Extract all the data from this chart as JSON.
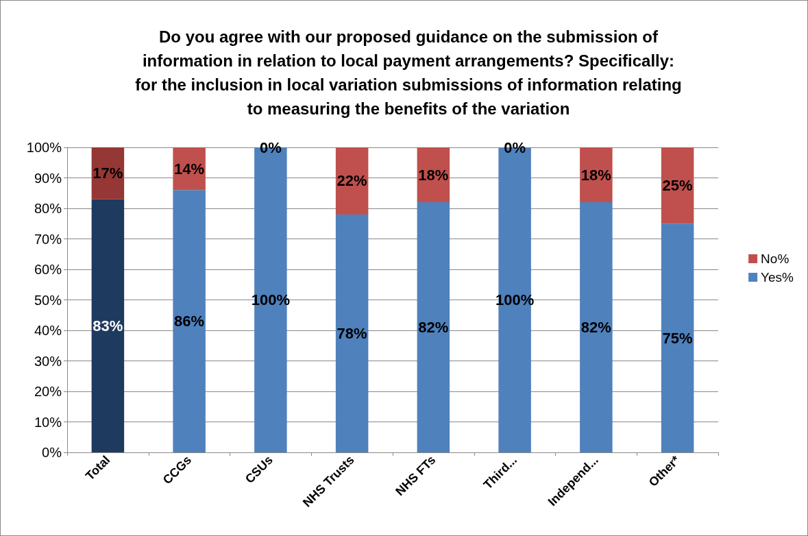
{
  "chart_data": {
    "type": "bar",
    "stacked": true,
    "title": "Do you agree with our proposed guidance on the submission of\ninformation in relation to local payment arrangements? Specifically:\nfor the inclusion in local variation submissions of information relating\nto measuring the benefits of the variation",
    "categories": [
      "Total",
      "CCGs",
      "CSUs",
      "NHS Trusts",
      "NHS FTs",
      "Third...",
      "Independ...",
      "Other*"
    ],
    "series": [
      {
        "name": "Yes%",
        "color": "#4f81bd",
        "colors": [
          "#1f3a5f",
          "#4f81bd",
          "#4f81bd",
          "#4f81bd",
          "#4f81bd",
          "#4f81bd",
          "#4f81bd",
          "#4f81bd"
        ],
        "values": [
          83,
          86,
          100,
          78,
          82,
          100,
          82,
          75
        ],
        "value_labels": [
          "83%",
          "86%",
          "100%",
          "78%",
          "82%",
          "100%",
          "82%",
          "75%"
        ]
      },
      {
        "name": "No%",
        "color": "#c0504d",
        "colors": [
          "#953735",
          "#c0504d",
          "#c0504d",
          "#c0504d",
          "#c0504d",
          "#c0504d",
          "#c0504d",
          "#c0504d"
        ],
        "values": [
          17,
          14,
          0,
          22,
          18,
          0,
          18,
          25
        ],
        "value_labels": [
          "17%",
          "14%",
          "0%",
          "22%",
          "18%",
          "0%",
          "18%",
          "25%"
        ]
      }
    ],
    "ylim": [
      0,
      100
    ],
    "yticks": [
      {
        "value": 0,
        "label": "0%"
      },
      {
        "value": 10,
        "label": "10%"
      },
      {
        "value": 20,
        "label": "20%"
      },
      {
        "value": 30,
        "label": "30%"
      },
      {
        "value": 40,
        "label": "40%"
      },
      {
        "value": 50,
        "label": "50%"
      },
      {
        "value": 60,
        "label": "60%"
      },
      {
        "value": 70,
        "label": "70%"
      },
      {
        "value": 80,
        "label": "80%"
      },
      {
        "value": 90,
        "label": "90%"
      },
      {
        "value": 100,
        "label": "100%"
      }
    ],
    "grid": "y",
    "legend": "right"
  }
}
